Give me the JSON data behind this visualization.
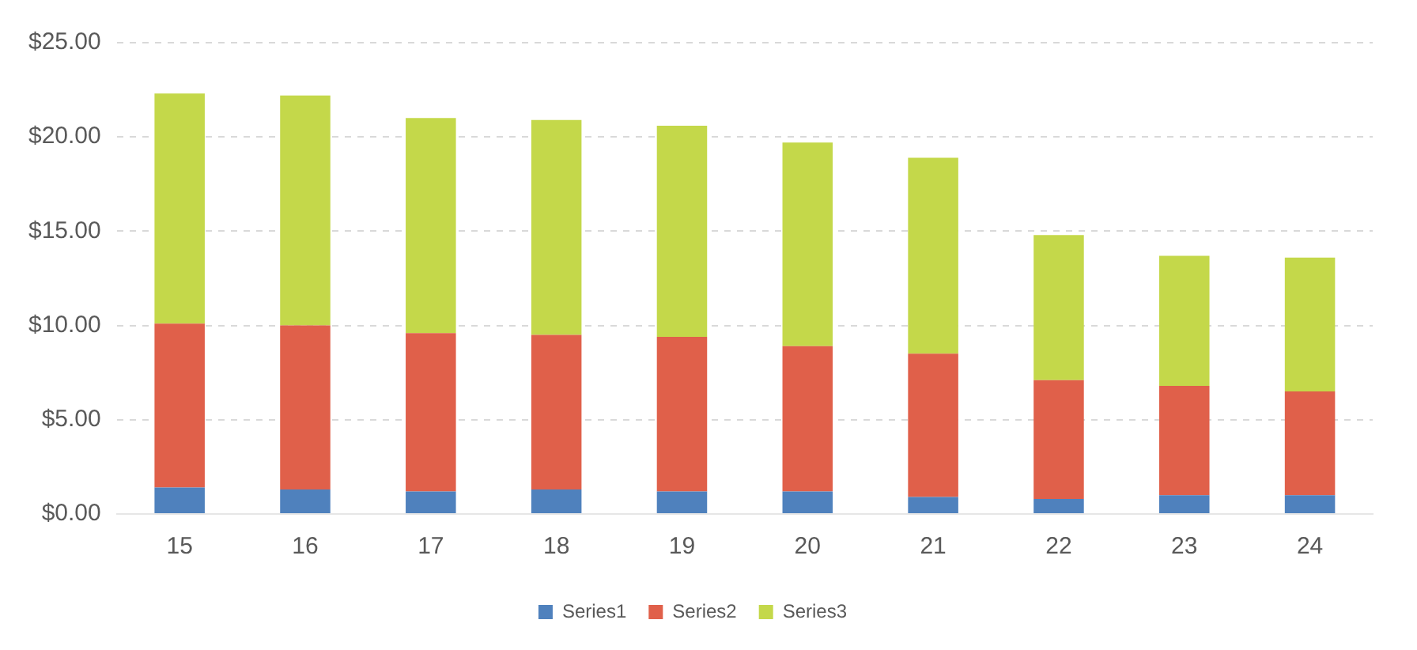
{
  "chart_data": {
    "type": "bar",
    "stacked": true,
    "categories": [
      "15",
      "16",
      "17",
      "18",
      "19",
      "20",
      "21",
      "22",
      "23",
      "24"
    ],
    "series": [
      {
        "name": "Series1",
        "color": "#4f81bd",
        "values": [
          1.4,
          1.3,
          1.2,
          1.3,
          1.2,
          1.2,
          0.9,
          0.8,
          1.0,
          1.0
        ]
      },
      {
        "name": "Series2",
        "color": "#e0604a",
        "values": [
          8.7,
          8.7,
          8.4,
          8.2,
          8.2,
          7.7,
          7.6,
          6.3,
          5.8,
          5.5
        ]
      },
      {
        "name": "Series3",
        "color": "#c4d84a",
        "values": [
          12.2,
          12.2,
          11.4,
          11.4,
          11.2,
          10.8,
          10.4,
          7.7,
          6.9,
          7.1
        ]
      }
    ],
    "ylim": [
      0,
      25
    ],
    "yticks": [
      {
        "value": 0,
        "label": "$0.00"
      },
      {
        "value": 5,
        "label": "$5.00"
      },
      {
        "value": 10,
        "label": "$10.00"
      },
      {
        "value": 15,
        "label": "$15.00"
      },
      {
        "value": 20,
        "label": "$20.00"
      },
      {
        "value": 25,
        "label": "$25.00"
      }
    ],
    "grid": "y",
    "legend": "bottom"
  }
}
